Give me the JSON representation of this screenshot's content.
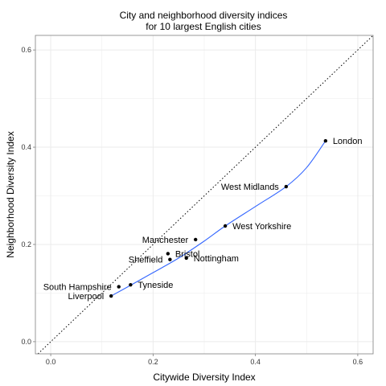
{
  "chart_data": {
    "type": "scatter",
    "title": [
      "City and neighborhood diversity indices",
      "for 10 largest English cities"
    ],
    "xlabel": "Citywide Diversity Index",
    "ylabel": "Neighborhood Diversity Index",
    "xlim": [
      -0.03,
      0.63
    ],
    "ylim": [
      -0.025,
      0.63
    ],
    "xticks": [
      0.0,
      0.2,
      0.4,
      0.6
    ],
    "xtick_labels": [
      "0.0",
      "0.2",
      "0.4",
      "0.6"
    ],
    "yticks": [
      0.0,
      0.2,
      0.4,
      0.6
    ],
    "ytick_labels": [
      "0.0",
      "0.2",
      "0.4",
      "0.6"
    ],
    "grid": true,
    "reference_line": "y = x (dotted)",
    "trend_line": "smooth (blue)",
    "colors": {
      "points": "#000000",
      "trend": "#3366ff",
      "grid": "#ebebeb",
      "border": "#7f7f7f"
    },
    "points": [
      {
        "label": "London",
        "x": 0.537,
        "y": 0.413,
        "anchor": "start"
      },
      {
        "label": "West Midlands",
        "x": 0.46,
        "y": 0.319,
        "anchor": "end"
      },
      {
        "label": "West Yorkshire",
        "x": 0.341,
        "y": 0.238,
        "anchor": "start"
      },
      {
        "label": "Manchester",
        "x": 0.283,
        "y": 0.21,
        "anchor": "end"
      },
      {
        "label": "Bristol",
        "x": 0.229,
        "y": 0.181,
        "anchor": "start"
      },
      {
        "label": "Nottingham",
        "x": 0.265,
        "y": 0.172,
        "anchor": "start"
      },
      {
        "label": "Sheffield",
        "x": 0.233,
        "y": 0.169,
        "anchor": "end"
      },
      {
        "label": "Tyneside",
        "x": 0.156,
        "y": 0.117,
        "anchor": "start"
      },
      {
        "label": "South Hampshire",
        "x": 0.133,
        "y": 0.113,
        "anchor": "end"
      },
      {
        "label": "Liverpool",
        "x": 0.118,
        "y": 0.094,
        "anchor": "end"
      }
    ],
    "trend": [
      {
        "x": 0.118,
        "y": 0.094
      },
      {
        "x": 0.156,
        "y": 0.116
      },
      {
        "x": 0.2,
        "y": 0.142
      },
      {
        "x": 0.25,
        "y": 0.172
      },
      {
        "x": 0.3,
        "y": 0.207
      },
      {
        "x": 0.341,
        "y": 0.238
      },
      {
        "x": 0.4,
        "y": 0.278
      },
      {
        "x": 0.46,
        "y": 0.319
      },
      {
        "x": 0.5,
        "y": 0.358
      },
      {
        "x": 0.537,
        "y": 0.413
      }
    ]
  }
}
